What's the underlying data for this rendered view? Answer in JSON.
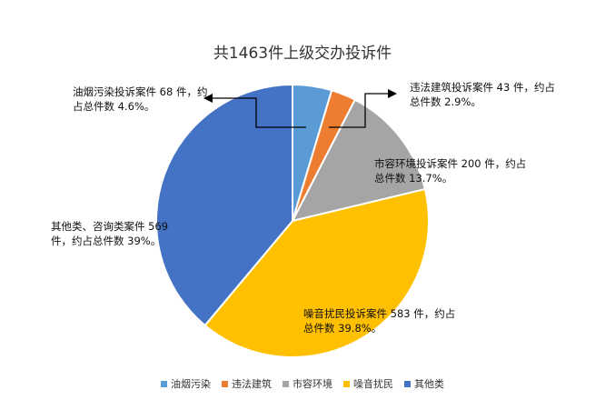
{
  "chart_data": {
    "type": "pie",
    "title": "共1463件上级交办投诉件",
    "categories": [
      "油烟污染",
      "违法建筑",
      "市容环境",
      "噪音扰民",
      "其他类"
    ],
    "values": [
      68,
      43,
      200,
      583,
      569
    ],
    "percent": [
      4.6,
      2.9,
      13.7,
      39.8,
      39
    ],
    "colors": [
      "#5b9bd5",
      "#ed7d31",
      "#a5a5a5",
      "#ffc000",
      "#4472c4"
    ],
    "legend_position": "bottom",
    "annotations": [
      "油烟污染投诉案件 68 件，约占总件数 4.6%。",
      "违法建筑投诉案件 43 件，约占总件数 2.9%。",
      "市容环境投诉案件 200 件，约占总件数 13.7%。",
      "噪音扰民投诉案件 583 件，约占总件数 39.8%。",
      "其他类、咨询类案件 569 件，约占总件数 39%。"
    ]
  }
}
